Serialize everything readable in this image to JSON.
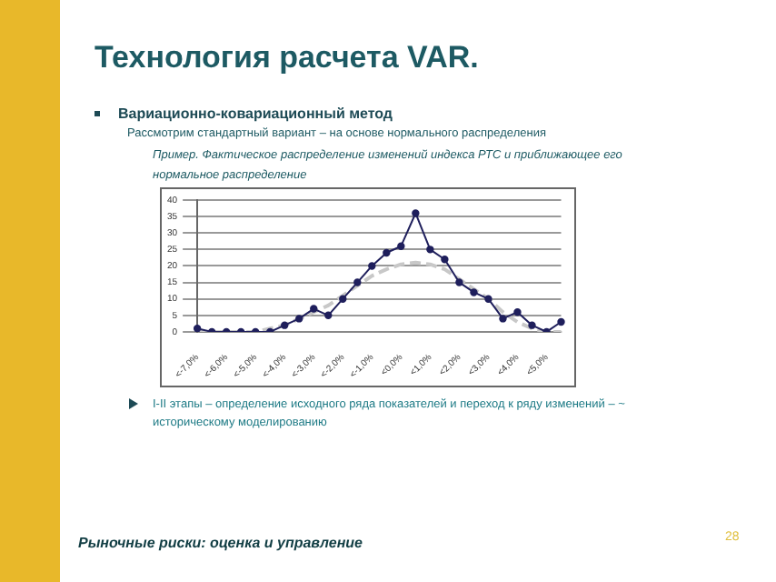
{
  "chart_data": {
    "type": "line",
    "title": "Технология расчета VAR.",
    "annotations": [
      "Вариационно-ковариационный метод",
      "Рассмотрим стандартный вариант – на основе нормального распределения",
      "Пример. Фактическое распределение изменений индекса РТС и приближающее его нормальное распределение",
      "I-II этапы – определение исходного ряда показателей и переход к ряду изменений – ~ историческому моделированию",
      "Рыночные риски: оценка и управление",
      "28"
    ],
    "categories": [
      "<-7,0%",
      null,
      "<-6,0%",
      null,
      "<-5,0%",
      null,
      "<-4,0%",
      null,
      "<-3,0%",
      null,
      "<-2,0%",
      null,
      "<-1,0%",
      null,
      "<0,0%",
      null,
      "<1,0%",
      null,
      "<2,0%",
      null,
      "<3,0%",
      null,
      "<4,0%",
      null,
      "<5,0%",
      null
    ],
    "series": [
      {
        "color": "#1f1f5c",
        "marker": "circle",
        "line_style": "solid",
        "values": [
          1,
          0,
          0,
          0,
          0,
          0,
          2,
          4,
          7,
          5,
          10,
          15,
          20,
          24,
          26,
          36,
          25,
          22,
          15,
          12,
          10,
          4,
          6,
          2,
          0,
          3
        ]
      },
      {
        "color": "#c8c8c8",
        "marker": "none",
        "line_style": "dashed",
        "values": [
          0,
          0,
          0,
          0,
          0,
          1,
          2,
          4,
          6,
          8,
          11,
          14,
          17,
          19,
          20.5,
          21,
          20.5,
          19,
          16,
          13,
          10,
          6,
          3,
          1,
          0,
          0
        ]
      }
    ],
    "ylim": [
      0,
      40
    ],
    "yticks": [
      0,
      5,
      10,
      15,
      20,
      25,
      30,
      35,
      40
    ],
    "grid": "y",
    "legend": false
  }
}
